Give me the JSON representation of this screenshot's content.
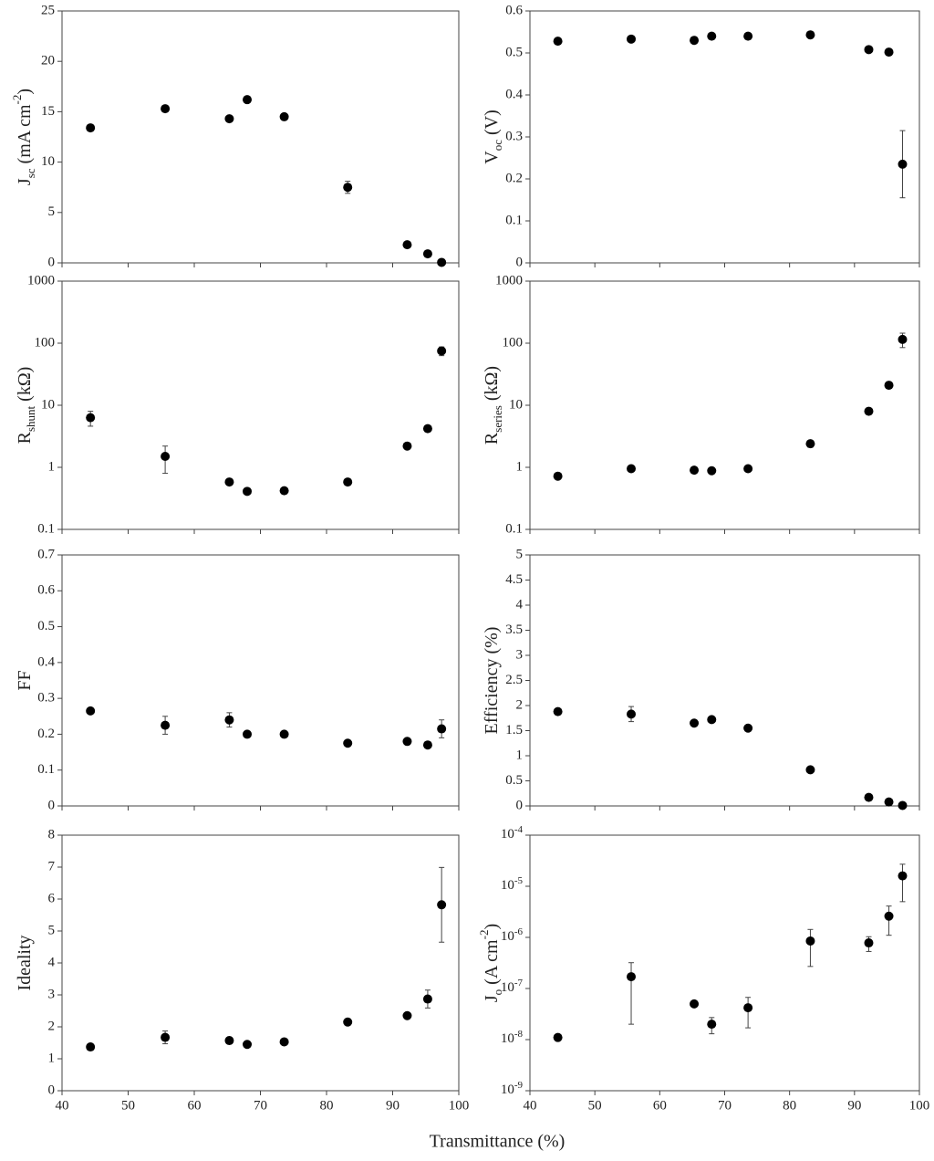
{
  "common_xlabel": "Transmittance (%)",
  "chart_data": [
    {
      "type": "scatter",
      "ylabel": [
        {
          "text": "J"
        },
        {
          "text": "sc",
          "shift": "sub"
        },
        {
          "text": " (mA cm"
        },
        {
          "text": "-2",
          "shift": "super"
        },
        {
          "text": ")"
        }
      ],
      "x": [
        44.3,
        55.6,
        65.3,
        68,
        73.6,
        83.2,
        92.2,
        95.3,
        97.4
      ],
      "values": [
        13.4,
        15.3,
        14.3,
        16.2,
        14.5,
        7.5,
        1.8,
        0.9,
        0.05
      ],
      "errors": [
        null,
        null,
        null,
        null,
        null,
        0.6,
        null,
        null,
        null
      ],
      "xlim": [
        40,
        100
      ],
      "xticks": [
        40,
        50,
        60,
        70,
        80,
        90,
        100
      ],
      "ylim": [
        0,
        25
      ],
      "yticks": [
        0,
        5,
        10,
        15,
        20,
        25
      ],
      "log": false,
      "color": "#000000"
    },
    {
      "type": "scatter",
      "ylabel": [
        {
          "text": "V"
        },
        {
          "text": "oc",
          "shift": "sub"
        },
        {
          "text": " (V)"
        }
      ],
      "x": [
        44.3,
        55.6,
        65.3,
        68,
        73.6,
        83.2,
        92.2,
        95.3,
        97.4
      ],
      "values": [
        0.528,
        0.533,
        0.53,
        0.54,
        0.54,
        0.543,
        0.508,
        0.502,
        0.235
      ],
      "errors": [
        null,
        null,
        null,
        null,
        null,
        null,
        null,
        null,
        0.08
      ],
      "xlim": [
        40,
        100
      ],
      "xticks": [
        40,
        50,
        60,
        70,
        80,
        90,
        100
      ],
      "ylim": [
        0,
        0.6
      ],
      "yticks": [
        0,
        0.1,
        0.2,
        0.3,
        0.4,
        0.5,
        0.6
      ],
      "log": false,
      "color": "#000000"
    },
    {
      "type": "scatter",
      "ylabel": [
        {
          "text": "R"
        },
        {
          "text": "shunt",
          "shift": "sub"
        },
        {
          "text": " (kΩ)"
        }
      ],
      "x": [
        44.3,
        55.6,
        65.3,
        68,
        73.6,
        83.2,
        92.2,
        95.3,
        97.4
      ],
      "values": [
        6.3,
        1.5,
        0.58,
        0.41,
        0.42,
        0.58,
        2.2,
        4.2,
        75
      ],
      "errors": [
        1.7,
        0.7,
        null,
        null,
        null,
        null,
        null,
        null,
        12
      ],
      "xlim": [
        40,
        100
      ],
      "xticks": [
        40,
        50,
        60,
        70,
        80,
        90,
        100
      ],
      "ylim": [
        0.1,
        1000
      ],
      "yticks": [
        0.1,
        1,
        10,
        100,
        1000
      ],
      "log": true,
      "color": "#000000"
    },
    {
      "type": "scatter",
      "ylabel": [
        {
          "text": "R"
        },
        {
          "text": "series",
          "shift": "sub"
        },
        {
          "text": " (kΩ)"
        }
      ],
      "x": [
        44.3,
        55.6,
        65.3,
        68,
        73.6,
        83.2,
        92.2,
        95.3,
        97.4
      ],
      "values": [
        0.72,
        0.95,
        0.9,
        0.88,
        0.95,
        2.4,
        8,
        21,
        115
      ],
      "errors": [
        null,
        null,
        null,
        null,
        null,
        0.3,
        null,
        null,
        30
      ],
      "xlim": [
        40,
        100
      ],
      "xticks": [
        40,
        50,
        60,
        70,
        80,
        90,
        100
      ],
      "ylim": [
        0.1,
        1000
      ],
      "yticks": [
        0.1,
        1,
        10,
        100,
        1000
      ],
      "log": true,
      "color": "#000000"
    },
    {
      "type": "scatter",
      "ylabel": [
        {
          "text": "FF"
        }
      ],
      "x": [
        44.3,
        55.6,
        65.3,
        68,
        73.6,
        83.2,
        92.2,
        95.3,
        97.4
      ],
      "values": [
        0.265,
        0.225,
        0.24,
        0.2,
        0.2,
        0.175,
        0.18,
        0.17,
        0.215
      ],
      "errors": [
        null,
        0.025,
        0.02,
        null,
        null,
        null,
        null,
        null,
        0.025
      ],
      "xlim": [
        40,
        100
      ],
      "xticks": [
        40,
        50,
        60,
        70,
        80,
        90,
        100
      ],
      "ylim": [
        0,
        0.7
      ],
      "yticks": [
        0,
        0.1,
        0.2,
        0.3,
        0.4,
        0.5,
        0.6,
        0.7
      ],
      "log": false,
      "color": "#000000"
    },
    {
      "type": "scatter",
      "ylabel": [
        {
          "text": "Efficiency (%)"
        }
      ],
      "x": [
        44.3,
        55.6,
        65.3,
        68,
        73.6,
        83.2,
        92.2,
        95.3,
        97.4
      ],
      "values": [
        1.88,
        1.83,
        1.65,
        1.72,
        1.55,
        0.72,
        0.17,
        0.08,
        0.01
      ],
      "errors": [
        null,
        0.15,
        null,
        null,
        null,
        null,
        null,
        null,
        null
      ],
      "xlim": [
        40,
        100
      ],
      "xticks": [
        40,
        50,
        60,
        70,
        80,
        90,
        100
      ],
      "ylim": [
        0,
        5
      ],
      "yticks": [
        0,
        0.5,
        1,
        1.5,
        2,
        2.5,
        3,
        3.5,
        4,
        4.5,
        5
      ],
      "log": false,
      "color": "#000000"
    },
    {
      "type": "scatter",
      "ylabel": [
        {
          "text": "Ideality"
        }
      ],
      "x": [
        44.3,
        55.6,
        65.3,
        68,
        73.6,
        83.2,
        92.2,
        95.3,
        97.4
      ],
      "values": [
        1.37,
        1.67,
        1.57,
        1.45,
        1.53,
        2.15,
        2.35,
        2.87,
        5.82
      ],
      "errors": [
        null,
        0.2,
        null,
        null,
        null,
        0.1,
        null,
        0.28,
        1.17
      ],
      "xlim": [
        40,
        100
      ],
      "xticks": [
        40,
        50,
        60,
        70,
        80,
        90,
        100
      ],
      "ylim": [
        0,
        8
      ],
      "yticks": [
        0,
        1,
        2,
        3,
        4,
        5,
        6,
        7,
        8
      ],
      "log": false,
      "color": "#000000"
    },
    {
      "type": "scatter",
      "ylabel": [
        {
          "text": "J"
        },
        {
          "text": "o",
          "shift": "sub"
        },
        {
          "text": " (A cm"
        },
        {
          "text": "-2",
          "shift": "super"
        },
        {
          "text": ")"
        }
      ],
      "x": [
        44.3,
        55.6,
        65.3,
        68,
        73.6,
        83.2,
        92.2,
        95.3,
        97.4
      ],
      "values": [
        1.1e-08,
        1.7e-07,
        5e-08,
        2e-08,
        4.2e-08,
        8.5e-07,
        7.8e-07,
        2.6e-06,
        1.6e-05
      ],
      "errors": [
        null,
        1.5e-07,
        null,
        7e-09,
        2.5e-08,
        5.8e-07,
        2.5e-07,
        1.5e-06,
        1.1e-05
      ],
      "xlim": [
        40,
        100
      ],
      "xticks": [
        40,
        50,
        60,
        70,
        80,
        90,
        100
      ],
      "ylim": [
        1e-09,
        0.0001
      ],
      "yticks": [
        {
          "value": 1e-09,
          "label": "10",
          "sup": "-9"
        },
        {
          "value": 1e-08,
          "label": "10",
          "sup": "-8"
        },
        {
          "value": 1e-07,
          "label": "10",
          "sup": "-7"
        },
        {
          "value": 1e-06,
          "label": "10",
          "sup": "-6"
        },
        {
          "value": 1e-05,
          "label": "10",
          "sup": "-5"
        },
        {
          "value": 0.0001,
          "label": "10",
          "sup": "-4"
        }
      ],
      "log": true,
      "color": "#000000"
    }
  ]
}
